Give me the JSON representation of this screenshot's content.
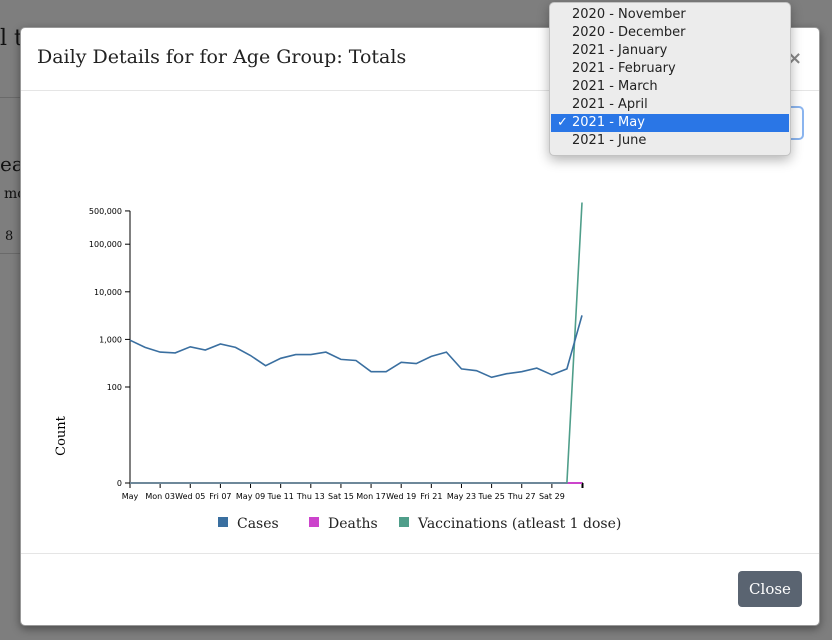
{
  "background": {
    "heading_fragment": "l t",
    "side_fragment_1": "ea",
    "side_fragment_2": "mo",
    "side_fragment_3": "8"
  },
  "modal": {
    "title": "Daily Details for for Age Group: Totals",
    "close_icon": "×",
    "close_button": "Close"
  },
  "dropdown": {
    "options": [
      "2020 - November",
      "2020 - December",
      "2021 - January",
      "2021 - February",
      "2021 - March",
      "2021 - April",
      "2021 - May",
      "2021 - June"
    ],
    "selected": "2021 - May",
    "check": "✓"
  },
  "chart_data": {
    "type": "line",
    "ylabel": "Count",
    "xlabel": "",
    "y_scale": "symlog",
    "y_ticks": [
      0,
      100,
      1000,
      10000,
      100000,
      500000
    ],
    "y_tick_labels": [
      "0",
      "100",
      "1,000",
      "10,000",
      "100,000",
      "500,000"
    ],
    "x_tick_labels": [
      "May",
      "Mon 03",
      "Wed 05",
      "Fri 07",
      "May 09",
      "Tue 11",
      "Thu 13",
      "Sat 15",
      "Mon 17",
      "Wed 19",
      "Fri 21",
      "May 23",
      "Tue 25",
      "Thu 27",
      "Sat 29"
    ],
    "x": [
      "2021-05-01",
      "2021-05-02",
      "2021-05-03",
      "2021-05-04",
      "2021-05-05",
      "2021-05-06",
      "2021-05-07",
      "2021-05-08",
      "2021-05-09",
      "2021-05-10",
      "2021-05-11",
      "2021-05-12",
      "2021-05-13",
      "2021-05-14",
      "2021-05-15",
      "2021-05-16",
      "2021-05-17",
      "2021-05-18",
      "2021-05-19",
      "2021-05-20",
      "2021-05-21",
      "2021-05-22",
      "2021-05-23",
      "2021-05-24",
      "2021-05-25",
      "2021-05-26",
      "2021-05-27",
      "2021-05-28",
      "2021-05-29",
      "2021-05-30",
      "2021-05-31"
    ],
    "series": [
      {
        "name": "Cases",
        "color": "#3a6fa0",
        "values": [
          960,
          680,
          540,
          520,
          700,
          600,
          800,
          680,
          460,
          280,
          400,
          480,
          480,
          540,
          380,
          360,
          210,
          210,
          330,
          310,
          440,
          540,
          240,
          220,
          160,
          190,
          210,
          250,
          180,
          240,
          3200
        ]
      },
      {
        "name": "Deaths",
        "color": "#cc44cc",
        "values": [
          0,
          0,
          0,
          0,
          0,
          0,
          0,
          0,
          0,
          0,
          0,
          0,
          0,
          0,
          0,
          0,
          0,
          0,
          0,
          0,
          0,
          0,
          0,
          0,
          0,
          0,
          0,
          0,
          0,
          0,
          0
        ]
      },
      {
        "name": "Vaccinations (atleast 1 dose)",
        "color": "#4f9e8a",
        "values": [
          0,
          0,
          0,
          0,
          0,
          0,
          0,
          0,
          0,
          0,
          0,
          0,
          0,
          0,
          0,
          0,
          0,
          0,
          0,
          0,
          0,
          0,
          0,
          0,
          0,
          0,
          0,
          0,
          0,
          0,
          750000
        ]
      }
    ],
    "legend_placement": "bottom"
  }
}
